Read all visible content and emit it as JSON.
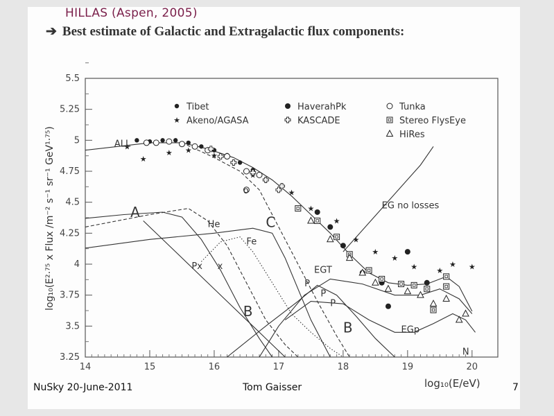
{
  "slide": {
    "header": "HILLAS (Aspen, 2005)",
    "subtitle": "Best estimate of Galactic and Extragalactic flux components:",
    "footer_left": "NuSky 20-June-2011",
    "footer_center": "Tom Gaisser",
    "page_number": "7"
  },
  "chart_data": {
    "type": "scatter",
    "xlabel": "log₁₀(E/eV)",
    "ylabel": "log₁₀(E²·⁷⁵ x Flux /m⁻² s⁻¹ sr⁻¹ GeV¹·⁷⁵)",
    "xlim": [
      14,
      20.4
    ],
    "ylim": [
      3.25,
      5.5
    ],
    "x_ticks": [
      14,
      15,
      16,
      17,
      18,
      19,
      20
    ],
    "y_ticks": [
      "3.25",
      "3.5",
      "3.75",
      "4",
      "4.25",
      "4.5",
      "4.75",
      "5",
      "5.25",
      "5.5"
    ],
    "legend_position": "top-right",
    "legend": [
      {
        "label": "Tibet",
        "marker": "filled-circle-small"
      },
      {
        "label": "HaverahPk",
        "marker": "filled-circle"
      },
      {
        "label": "Tunka",
        "marker": "open-circle"
      },
      {
        "label": "Akeno/AGASA",
        "marker": "star"
      },
      {
        "label": "KASCADE",
        "marker": "open-cross"
      },
      {
        "label": "Stereo FlysEye",
        "marker": "open-square"
      },
      {
        "label": "HiRes",
        "marker": "open-triangle"
      }
    ],
    "curves": [
      {
        "label": "ALL",
        "style": "solid",
        "points": [
          [
            14,
            4.92
          ],
          [
            14.5,
            4.95
          ],
          [
            15,
            4.98
          ],
          [
            15.5,
            4.98
          ],
          [
            15.9,
            4.93
          ],
          [
            16.3,
            4.86
          ],
          [
            16.6,
            4.78
          ],
          [
            16.9,
            4.68
          ],
          [
            17.2,
            4.55
          ],
          [
            17.5,
            4.4
          ],
          [
            17.8,
            4.25
          ],
          [
            18.1,
            4.08
          ],
          [
            18.4,
            3.93
          ],
          [
            18.7,
            3.85
          ],
          [
            19,
            3.83
          ],
          [
            19.3,
            3.84
          ],
          [
            19.6,
            3.9
          ],
          [
            19.8,
            3.82
          ],
          [
            20,
            3.62
          ]
        ]
      },
      {
        "label": "A",
        "style": "solid",
        "points": [
          [
            14,
            4.37
          ],
          [
            14.6,
            4.4
          ],
          [
            15.2,
            4.42
          ],
          [
            15.5,
            4.38
          ],
          [
            15.8,
            4.2
          ],
          [
            16.1,
            3.95
          ],
          [
            16.4,
            3.65
          ],
          [
            16.7,
            3.4
          ],
          [
            16.9,
            3.25
          ]
        ]
      },
      {
        "label": "EG no losses",
        "style": "solid",
        "points": [
          [
            18,
            4.1
          ],
          [
            18.6,
            4.45
          ],
          [
            19.2,
            4.8
          ],
          [
            19.4,
            4.95
          ]
        ]
      },
      {
        "label": "C",
        "style": "dashed",
        "points": [
          [
            15.5,
            4.98
          ],
          [
            16,
            4.86
          ],
          [
            16.4,
            4.75
          ],
          [
            16.7,
            4.6
          ],
          [
            17,
            4.3
          ],
          [
            17.3,
            4.0
          ],
          [
            17.6,
            3.7
          ],
          [
            17.9,
            3.42
          ],
          [
            18.1,
            3.25
          ]
        ]
      },
      {
        "label": "He",
        "style": "dashed",
        "points": [
          [
            14,
            4.3
          ],
          [
            15,
            4.4
          ],
          [
            15.6,
            4.45
          ],
          [
            15.9,
            4.35
          ],
          [
            16.2,
            4.15
          ],
          [
            16.5,
            3.85
          ],
          [
            16.8,
            3.55
          ],
          [
            17.1,
            3.35
          ],
          [
            17.3,
            3.25
          ]
        ]
      },
      {
        "label": "Fe",
        "style": "solid",
        "points": [
          [
            14,
            4.13
          ],
          [
            15,
            4.2
          ],
          [
            16,
            4.25
          ],
          [
            16.6,
            4.29
          ],
          [
            16.9,
            4.25
          ],
          [
            17.1,
            4.05
          ],
          [
            17.3,
            3.8
          ],
          [
            17.5,
            3.55
          ],
          [
            17.7,
            3.35
          ],
          [
            17.8,
            3.25
          ]
        ]
      },
      {
        "label": "Px",
        "style": "dotted",
        "points": [
          [
            15.8,
            4.02
          ],
          [
            16.1,
            4.18
          ],
          [
            16.4,
            4.22
          ],
          [
            16.6,
            4.1
          ],
          [
            16.9,
            3.85
          ],
          [
            17.2,
            3.6
          ],
          [
            17.5,
            3.45
          ],
          [
            17.8,
            3.32
          ],
          [
            18.0,
            3.25
          ]
        ]
      },
      {
        "label": "B",
        "style": "solid",
        "points": [
          [
            14.9,
            4.35
          ],
          [
            15.4,
            4.1
          ],
          [
            15.8,
            3.9
          ],
          [
            16.2,
            3.7
          ],
          [
            16.6,
            3.5
          ],
          [
            16.9,
            3.35
          ],
          [
            17.1,
            3.25
          ]
        ]
      },
      {
        "label": "EGT",
        "style": "solid",
        "points": [
          [
            16.7,
            3.25
          ],
          [
            17,
            3.5
          ],
          [
            17.4,
            3.75
          ],
          [
            17.8,
            3.88
          ],
          [
            18.3,
            3.84
          ],
          [
            18.8,
            3.75
          ],
          [
            19.2,
            3.75
          ],
          [
            19.5,
            3.8
          ],
          [
            19.8,
            3.72
          ],
          [
            20,
            3.6
          ]
        ]
      },
      {
        "label": "EGp",
        "style": "solid",
        "points": [
          [
            17.1,
            3.55
          ],
          [
            17.5,
            3.7
          ],
          [
            18,
            3.68
          ],
          [
            18.4,
            3.55
          ],
          [
            18.8,
            3.45
          ],
          [
            19.1,
            3.45
          ],
          [
            19.4,
            3.52
          ],
          [
            19.7,
            3.6
          ],
          [
            19.9,
            3.55
          ],
          [
            20.05,
            3.45
          ]
        ]
      },
      {
        "label": "B",
        "style": "solid",
        "points": [
          [
            16.2,
            3.25
          ],
          [
            16.8,
            3.5
          ],
          [
            17.3,
            3.7
          ],
          [
            17.6,
            3.83
          ],
          [
            17.9,
            3.75
          ],
          [
            18.2,
            3.58
          ],
          [
            18.5,
            3.4
          ],
          [
            18.8,
            3.25
          ]
        ]
      }
    ],
    "series": [
      {
        "name": "Tibet",
        "marker": "filled-circle-small",
        "points": [
          [
            14.8,
            5.0
          ],
          [
            15.0,
            4.99
          ],
          [
            15.2,
            5.0
          ],
          [
            15.4,
            5.0
          ],
          [
            15.6,
            4.98
          ],
          [
            15.8,
            4.95
          ],
          [
            16.0,
            4.92
          ],
          [
            16.2,
            4.88
          ],
          [
            16.4,
            4.82
          ],
          [
            16.6,
            4.76
          ]
        ]
      },
      {
        "name": "HaverahPk",
        "marker": "filled-circle",
        "points": [
          [
            17.6,
            4.42
          ],
          [
            17.8,
            4.3
          ],
          [
            18.0,
            4.15
          ],
          [
            18.3,
            3.93
          ],
          [
            18.6,
            3.85
          ],
          [
            18.7,
            3.66
          ],
          [
            19.0,
            4.1
          ],
          [
            19.3,
            3.85
          ]
        ]
      },
      {
        "name": "Tunka",
        "marker": "open-circle",
        "points": [
          [
            14.95,
            4.98
          ],
          [
            15.1,
            4.98
          ],
          [
            15.3,
            4.99
          ],
          [
            15.5,
            4.97
          ],
          [
            15.7,
            4.95
          ],
          [
            15.9,
            4.92
          ],
          [
            16.2,
            4.87
          ],
          [
            16.5,
            4.75
          ],
          [
            16.7,
            4.72
          ],
          [
            16.5,
            4.6
          ]
        ]
      },
      {
        "name": "Akeno/AGASA",
        "marker": "star",
        "points": [
          [
            14.65,
            4.95
          ],
          [
            14.9,
            4.85
          ],
          [
            15.3,
            4.9
          ],
          [
            15.6,
            4.92
          ],
          [
            16.0,
            4.88
          ],
          [
            16.6,
            4.72
          ],
          [
            17.2,
            4.58
          ],
          [
            17.5,
            4.45
          ],
          [
            17.9,
            4.35
          ],
          [
            18.2,
            4.2
          ],
          [
            18.5,
            4.1
          ],
          [
            18.8,
            4.05
          ],
          [
            19.1,
            3.98
          ],
          [
            19.5,
            3.95
          ],
          [
            19.7,
            4.0
          ],
          [
            20.0,
            3.98
          ]
        ]
      },
      {
        "name": "KASCADE",
        "marker": "open-cross",
        "points": [
          [
            15.95,
            4.93
          ],
          [
            16.1,
            4.87
          ],
          [
            16.3,
            4.82
          ],
          [
            16.6,
            4.74
          ],
          [
            16.8,
            4.68
          ],
          [
            17.0,
            4.6
          ],
          [
            17.05,
            4.63
          ]
        ]
      },
      {
        "name": "Stereo FlysEye",
        "marker": "open-square",
        "points": [
          [
            17.3,
            4.45
          ],
          [
            17.6,
            4.35
          ],
          [
            17.9,
            4.22
          ],
          [
            18.1,
            4.08
          ],
          [
            18.4,
            3.95
          ],
          [
            18.6,
            3.88
          ],
          [
            18.9,
            3.84
          ],
          [
            19.1,
            3.83
          ],
          [
            19.3,
            3.8
          ],
          [
            19.6,
            3.9
          ],
          [
            19.4,
            3.63
          ],
          [
            19.6,
            3.82
          ]
        ]
      },
      {
        "name": "HiRes",
        "marker": "open-triangle",
        "points": [
          [
            17.5,
            4.35
          ],
          [
            17.8,
            4.2
          ],
          [
            18.1,
            4.05
          ],
          [
            18.3,
            3.93
          ],
          [
            18.5,
            3.85
          ],
          [
            18.7,
            3.8
          ],
          [
            19.0,
            3.78
          ],
          [
            19.2,
            3.75
          ],
          [
            19.4,
            3.68
          ],
          [
            19.6,
            3.72
          ],
          [
            19.8,
            3.55
          ],
          [
            19.9,
            3.6
          ]
        ]
      }
    ],
    "annotations": [
      {
        "text": "ALL",
        "x": 14.45,
        "y": 4.95
      },
      {
        "text": "A",
        "x": 14.7,
        "y": 4.38
      },
      {
        "text": "He",
        "x": 15.9,
        "y": 4.3
      },
      {
        "text": "Fe",
        "x": 16.5,
        "y": 4.16
      },
      {
        "text": "Px",
        "x": 15.65,
        "y": 3.96
      },
      {
        "text": "x",
        "x": 16.05,
        "y": 3.96
      },
      {
        "text": "C",
        "x": 16.8,
        "y": 4.3
      },
      {
        "text": "o",
        "x": 16.45,
        "y": 4.57
      },
      {
        "text": "EG no losses",
        "x": 18.6,
        "y": 4.45
      },
      {
        "text": "EGT",
        "x": 17.55,
        "y": 3.93
      },
      {
        "text": "P",
        "x": 17.4,
        "y": 3.82
      },
      {
        "text": "P",
        "x": 17.65,
        "y": 3.74
      },
      {
        "text": "P",
        "x": 17.8,
        "y": 3.66
      },
      {
        "text": "B",
        "x": 16.45,
        "y": 3.58
      },
      {
        "text": "B",
        "x": 18.0,
        "y": 3.45
      },
      {
        "text": "EGp",
        "x": 18.9,
        "y": 3.45
      },
      {
        "text": "N",
        "x": 19.85,
        "y": 3.27
      }
    ]
  }
}
